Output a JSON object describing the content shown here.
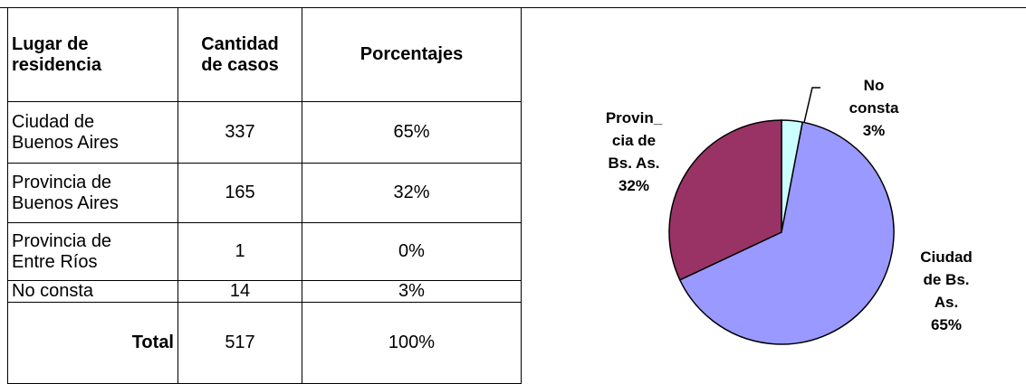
{
  "table": {
    "header": [
      "Lugar de\nresidencia",
      "Cantidad\nde casos",
      "Porcentajes"
    ],
    "rows": [
      [
        "Ciudad de\nBuenos Aires",
        "337",
        "65%"
      ],
      [
        "Provincia de\nBuenos Aires",
        "165",
        "32%"
      ],
      [
        "Provincia de\nEntre Ríos",
        "1",
        "0%"
      ],
      [
        "No consta",
        "14",
        "3%"
      ]
    ],
    "total": [
      "Total",
      "517",
      "100%"
    ]
  },
  "chart_data": {
    "type": "pie",
    "categories": [
      "No\nconsta",
      "Ciudad\nde Bs.\nAs.",
      "Provin_\ncia de\nBs. As."
    ],
    "values": [
      3,
      65,
      32
    ],
    "value_labels": [
      "3%",
      "65%",
      "32%"
    ],
    "colors": [
      "#ccffff",
      "#9999ff",
      "#993366"
    ]
  }
}
